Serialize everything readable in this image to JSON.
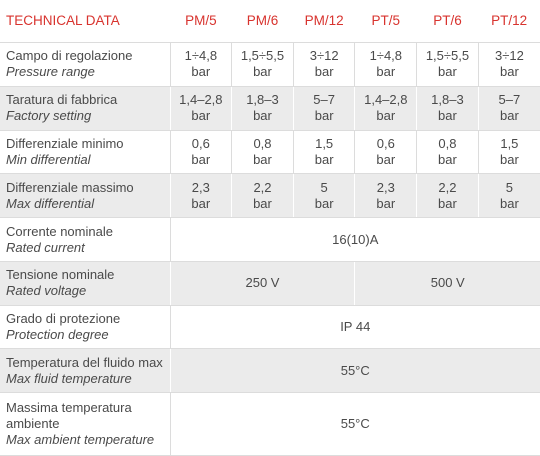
{
  "header": {
    "title": "TECHNICAL DATA",
    "columns": [
      "PM/5",
      "PM/6",
      "PM/12",
      "PT/5",
      "PT/6",
      "PT/12"
    ]
  },
  "rows": [
    {
      "label": "Campo di regolazione",
      "label_en": "Pressure range",
      "cells": [
        {
          "value": "1÷4,8",
          "unit": "bar"
        },
        {
          "value": "1,5÷5,5",
          "unit": "bar"
        },
        {
          "value": "3÷12",
          "unit": "bar"
        },
        {
          "value": "1÷4,8",
          "unit": "bar"
        },
        {
          "value": "1,5÷5,5",
          "unit": "bar"
        },
        {
          "value": "3÷12",
          "unit": "bar"
        }
      ]
    },
    {
      "label": "Taratura di fabbrica",
      "label_en": "Factory setting",
      "cells": [
        {
          "value": "1,4–2,8",
          "unit": "bar"
        },
        {
          "value": "1,8–3",
          "unit": "bar"
        },
        {
          "value": "5–7",
          "unit": "bar"
        },
        {
          "value": "1,4–2,8",
          "unit": "bar"
        },
        {
          "value": "1,8–3",
          "unit": "bar"
        },
        {
          "value": "5–7",
          "unit": "bar"
        }
      ]
    },
    {
      "label": "Differenziale minimo",
      "label_en": "Min differential",
      "cells": [
        {
          "value": "0,6",
          "unit": "bar"
        },
        {
          "value": "0,8",
          "unit": "bar"
        },
        {
          "value": "1,5",
          "unit": "bar"
        },
        {
          "value": "0,6",
          "unit": "bar"
        },
        {
          "value": "0,8",
          "unit": "bar"
        },
        {
          "value": "1,5",
          "unit": "bar"
        }
      ]
    },
    {
      "label": "Differenziale massimo",
      "label_en": "Max differential",
      "cells": [
        {
          "value": "2,3",
          "unit": "bar"
        },
        {
          "value": "2,2",
          "unit": "bar"
        },
        {
          "value": "5",
          "unit": "bar"
        },
        {
          "value": "2,3",
          "unit": "bar"
        },
        {
          "value": "2,2",
          "unit": "bar"
        },
        {
          "value": "5",
          "unit": "bar"
        }
      ]
    },
    {
      "label": "Corrente nominale",
      "label_en": "Rated current",
      "cells": [
        {
          "value": "16(10)A"
        }
      ]
    },
    {
      "label": "Tensione nominale",
      "label_en": "Rated voltage",
      "cells": [
        {
          "value": "250 V"
        },
        {
          "value": "500 V"
        }
      ]
    },
    {
      "label": "Grado di protezione",
      "label_en": "Protection degree",
      "cells": [
        {
          "value": "IP 44"
        }
      ]
    },
    {
      "label": "Temperatura del fluido max",
      "label_en": "Max fluid temperature",
      "cells": [
        {
          "value": "55°C"
        }
      ]
    },
    {
      "label": "Massima temperatura ambiente",
      "label_en": "Max ambient temperature",
      "cells": [
        {
          "value": "55°C"
        }
      ]
    }
  ]
}
